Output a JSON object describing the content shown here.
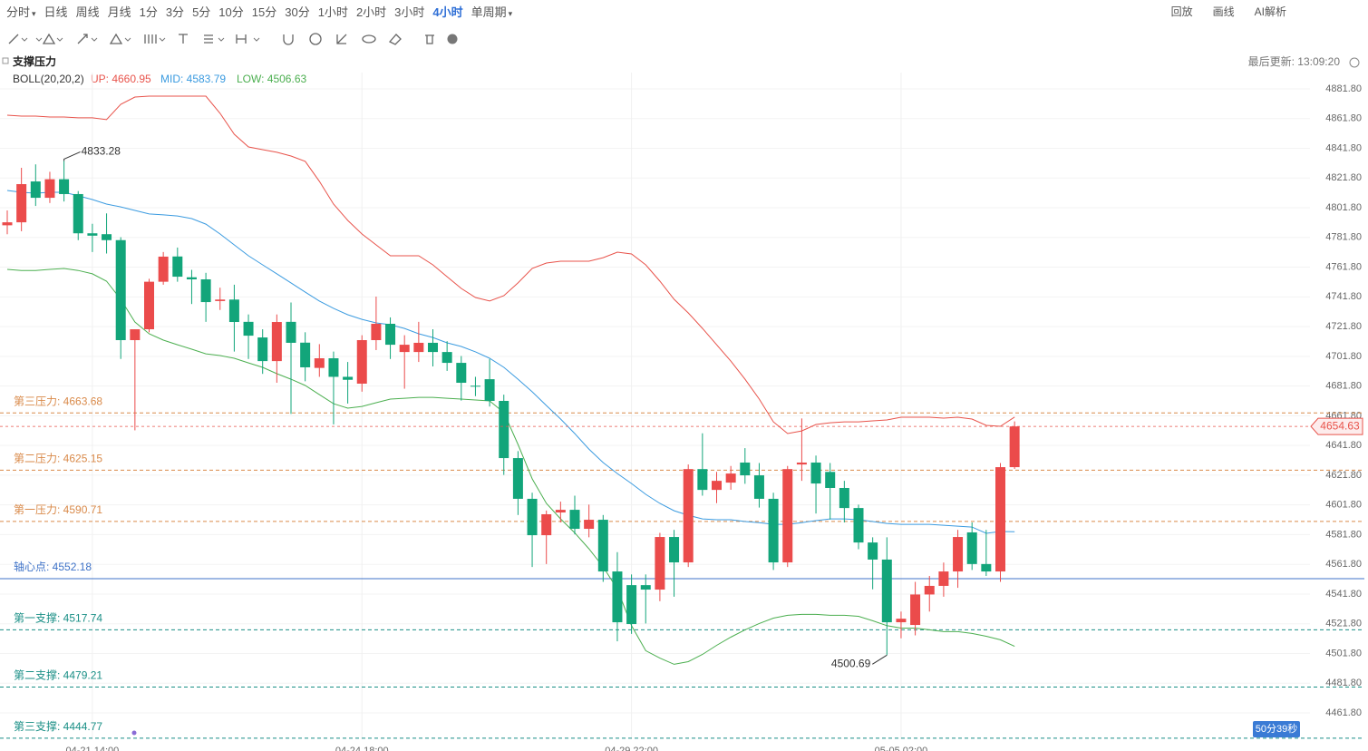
{
  "toolbar": {
    "periods": [
      {
        "label": "分时",
        "dropdown": true
      },
      {
        "label": "日线"
      },
      {
        "label": "周线"
      },
      {
        "label": "月线"
      },
      {
        "label": "1分"
      },
      {
        "label": "3分"
      },
      {
        "label": "5分"
      },
      {
        "label": "10分"
      },
      {
        "label": "15分"
      },
      {
        "label": "30分"
      },
      {
        "label": "1小时"
      },
      {
        "label": "2小时"
      },
      {
        "label": "3小时"
      },
      {
        "label": "4小时",
        "active": true
      },
      {
        "label": "单周期",
        "dropdown": true
      }
    ],
    "tools": [
      "回放",
      "画线",
      "AI解析"
    ]
  },
  "chart_data": {
    "type": "candlestick",
    "title": "支撑压力",
    "indicator": "BOLL(20,20,2)",
    "up_label": "UP: 4660.95",
    "mid_label": "MID: 4583.79",
    "low_label": "LOW: 4506.63",
    "updated": "最后更新: 13:09:20",
    "countdown": "50分39秒",
    "last_price_label": "4654.63",
    "ylim": [
      4461.8,
      4881.8
    ],
    "yticks": [
      {
        "value": 4881.8,
        "label": "4881.80"
      },
      {
        "value": 4861.8,
        "label": "4861.80"
      },
      {
        "value": 4841.8,
        "label": "4841.80"
      },
      {
        "value": 4821.8,
        "label": "4821.80"
      },
      {
        "value": 4801.8,
        "label": "4801.80"
      },
      {
        "value": 4781.8,
        "label": "4781.80"
      },
      {
        "value": 4761.8,
        "label": "4761.80"
      },
      {
        "value": 4741.8,
        "label": "4741.80"
      },
      {
        "value": 4721.8,
        "label": "4721.80"
      },
      {
        "value": 4701.8,
        "label": "4701.80"
      },
      {
        "value": 4681.8,
        "label": "4681.80"
      },
      {
        "value": 4661.8,
        "label": "4661.80"
      },
      {
        "value": 4641.8,
        "label": "4641.80"
      },
      {
        "value": 4621.8,
        "label": "4621.80"
      },
      {
        "value": 4601.8,
        "label": "4601.80"
      },
      {
        "value": 4581.8,
        "label": "4581.80"
      },
      {
        "value": 4561.8,
        "label": "4561.80"
      },
      {
        "value": 4541.8,
        "label": "4541.80"
      },
      {
        "value": 4521.8,
        "label": "4521.80"
      },
      {
        "value": 4501.8,
        "label": "4501.80"
      },
      {
        "value": 4481.8,
        "label": "4481.80"
      },
      {
        "value": 4461.8,
        "label": "4461.80"
      }
    ],
    "grid": true,
    "up_color": "#eb4b4b",
    "down_color": "#12a57a",
    "categories": [
      null,
      null,
      null,
      null,
      null,
      null,
      "04-21 14:00",
      null,
      null,
      null,
      null,
      null,
      null,
      null,
      null,
      null,
      null,
      null,
      null,
      null,
      null,
      null,
      null,
      null,
      null,
      "04-24 18:00",
      null,
      null,
      null,
      null,
      null,
      null,
      null,
      null,
      null,
      null,
      null,
      null,
      null,
      null,
      null,
      null,
      null,
      null,
      "04-29 22:00",
      null,
      null,
      null,
      null,
      null,
      null,
      null,
      null,
      null,
      null,
      null,
      null,
      null,
      null,
      null,
      null,
      null,
      null,
      "05-05 02:00",
      null,
      null,
      null,
      null,
      null,
      null,
      null,
      null
    ],
    "candles": {
      "open": [
        4790,
        4792,
        4819.5,
        4808.5,
        4821,
        4811,
        4784.6,
        4784,
        4780,
        4712.7,
        4720,
        4752,
        4769,
        4755,
        4753.6,
        4739,
        4740,
        4725,
        4714.5,
        4698.6,
        4725,
        4711,
        4694,
        4700.5,
        4688,
        4683.4,
        4712.7,
        4723.7,
        4704.7,
        4704.7,
        4710.9,
        4704.7,
        4697.4,
        4682,
        4686.4,
        4671.8,
        4633.3,
        4605.9,
        4581.4,
        4596.7,
        4598.5,
        4585.7,
        4591.8,
        4557,
        4547.8,
        4547.8,
        4544.8,
        4580.2,
        4563.1,
        4625.9,
        4611.9,
        4616.8,
        4630.3,
        4621.7,
        4605.9,
        4563.1,
        4629,
        4630.3,
        4624,
        4613.2,
        4599.7,
        4576.5,
        4565,
        4522.8,
        4521,
        4541.5,
        4547.3,
        4557,
        4583.3,
        4562,
        4557,
        4627.2
      ],
      "high": [
        4800,
        4828.7,
        4831,
        4826,
        4833.28,
        4813,
        4791,
        4798,
        4782,
        4720,
        4754,
        4772,
        4775,
        4760,
        4758,
        4748,
        4750,
        4730,
        4720,
        4730,
        4738,
        4718,
        4710,
        4705,
        4698,
        4716,
        4742,
        4728,
        4716,
        4725,
        4720,
        4712,
        4702,
        4688,
        4700,
        4676,
        4638,
        4610,
        4598,
        4604,
        4608,
        4602,
        4595,
        4570,
        4555,
        4555,
        4583,
        4585,
        4629,
        4650,
        4624,
        4628,
        4640,
        4630,
        4610,
        4628,
        4660,
        4635,
        4630,
        4618,
        4602,
        4580,
        4580,
        4530,
        4550,
        4554,
        4563,
        4585,
        4590,
        4585,
        4630,
        4658
      ],
      "low": [
        4784,
        4786,
        4803,
        4805,
        4806,
        4780,
        4772,
        4771,
        4700,
        4652,
        4718,
        4750,
        4752,
        4737,
        4725,
        4733,
        4705,
        4700,
        4690,
        4684,
        4663,
        4685,
        4688,
        4656,
        4670,
        4678,
        4706,
        4700,
        4680,
        4698,
        4695,
        4692,
        4672,
        4675,
        4668,
        4622,
        4595,
        4560,
        4562,
        4590,
        4582,
        4580,
        4550,
        4510,
        4515,
        4522,
        4537,
        4540,
        4560,
        4608,
        4603,
        4612,
        4616,
        4600,
        4558,
        4560,
        4618,
        4596,
        4592,
        4590,
        4572,
        4545,
        4500.69,
        4512,
        4514,
        4530,
        4540,
        4546,
        4558,
        4554,
        4550,
        4626
      ],
      "close": [
        4792,
        4817.7,
        4808.5,
        4821,
        4811,
        4784.6,
        4783,
        4780,
        4712.7,
        4720,
        4752,
        4768.9,
        4755.4,
        4753.6,
        4738.3,
        4740,
        4724.9,
        4715.7,
        4698.6,
        4724.9,
        4710.9,
        4694.4,
        4700.5,
        4688,
        4686,
        4712.7,
        4723.7,
        4709.6,
        4709.6,
        4710.9,
        4704.7,
        4697.4,
        4684,
        4681.5,
        4671.8,
        4633.3,
        4605.9,
        4581.4,
        4595.5,
        4598.5,
        4585.7,
        4591.8,
        4557,
        4522.8,
        4521.6,
        4544.8,
        4580.2,
        4563.1,
        4625.9,
        4611.9,
        4618,
        4622.9,
        4621.7,
        4605.9,
        4563.1,
        4625.9,
        4630.3,
        4616.2,
        4613.2,
        4599.7,
        4576.5,
        4565,
        4522.8,
        4525.2,
        4541.5,
        4547.3,
        4557,
        4580.2,
        4562,
        4557,
        4627.2,
        4654.63
      ]
    },
    "series": [
      {
        "name": "UP",
        "color": "#e8534b",
        "values": [
          4864.1,
          4863.5,
          4863.5,
          4862.9,
          4862.9,
          4862.3,
          4862.3,
          4861.1,
          4871.4,
          4876.3,
          4876.9,
          4876.9,
          4876.9,
          4876.9,
          4876.9,
          4865.3,
          4851.3,
          4842.7,
          4840.9,
          4839.1,
          4836.6,
          4833.0,
          4819.6,
          4804.3,
          4793.3,
          4784.1,
          4776.8,
          4769.5,
          4769.5,
          4769.5,
          4763.4,
          4755.4,
          4747.5,
          4741.4,
          4739.0,
          4742.6,
          4751.2,
          4761.0,
          4764.6,
          4765.8,
          4765.8,
          4765.8,
          4768.2,
          4771.9,
          4770.7,
          4763.4,
          4752.4,
          4740.2,
          4731.0,
          4720.6,
          4709.6,
          4698.6,
          4686.4,
          4673.0,
          4657.7,
          4649.8,
          4651.6,
          4655.9,
          4657.1,
          4657.7,
          4657.7,
          4658.4,
          4659.0,
          4660.8,
          4660.8,
          4660.8,
          4660.2,
          4660.8,
          4659.6,
          4655.3,
          4654.7,
          4660.95
        ]
      },
      {
        "name": "MID",
        "color": "#3b9be0",
        "values": [
          4813.4,
          4812.2,
          4811.6,
          4812.2,
          4812.2,
          4809.8,
          4807.3,
          4804.3,
          4802.4,
          4800.0,
          4797.6,
          4797.0,
          4796.3,
          4794.5,
          4790.8,
          4784.1,
          4776.8,
          4769.5,
          4763.4,
          4757.3,
          4751.2,
          4745.0,
          4739.0,
          4734.1,
          4729.8,
          4726.7,
          4724.3,
          4723.1,
          4720.6,
          4717.0,
          4714.5,
          4710.9,
          4708.4,
          4704.8,
          4700.5,
          4694.4,
          4686.4,
          4677.9,
          4668.7,
          4659.6,
          4649.8,
          4639.4,
          4630.3,
          4622.9,
          4616.2,
          4608.9,
          4602.8,
          4597.9,
          4594.8,
          4592.4,
          4591.8,
          4591.8,
          4590.6,
          4589.9,
          4588.7,
          4588.7,
          4589.9,
          4591.2,
          4592.4,
          4592.4,
          4591.8,
          4590.6,
          4589.3,
          4588.7,
          4588.7,
          4588.7,
          4588.1,
          4587.5,
          4586.9,
          4582.7,
          4583.9,
          4583.79
        ]
      },
      {
        "name": "LOW",
        "color": "#4caf50",
        "values": [
          4760.3,
          4759.6,
          4759.6,
          4760.3,
          4760.9,
          4759.6,
          4757.3,
          4752.4,
          4740.2,
          4724.9,
          4717.0,
          4712.7,
          4709.6,
          4706.6,
          4703.5,
          4702.3,
          4700.5,
          4697.4,
          4694.4,
          4690.1,
          4686.4,
          4682.2,
          4676.0,
          4669.9,
          4666.9,
          4668.1,
          4670.6,
          4673.0,
          4673.6,
          4674.2,
          4674.2,
          4673.6,
          4673.0,
          4672.4,
          4671.8,
          4663.9,
          4642.5,
          4619.3,
          4602.8,
          4592.4,
          4583.0,
          4572.3,
          4560.1,
          4545.1,
          4520.5,
          4503.7,
          4498.7,
          4494.5,
          4496.3,
          4501.2,
          4507.3,
          4512.8,
          4517.7,
          4522.0,
          4525.6,
          4527.5,
          4528.1,
          4528.1,
          4527.5,
          4527.5,
          4526.8,
          4523.8,
          4520.5,
          4518.9,
          4518.9,
          4517.7,
          4516.5,
          4516.5,
          4515.3,
          4513.4,
          4511.0,
          4506.63
        ]
      }
    ],
    "levels": [
      {
        "label": "第三压力: 4663.68",
        "value": 4663.68,
        "color": "#d98a4a",
        "dash": true
      },
      {
        "label": "第二压力: 4625.15",
        "value": 4625.15,
        "color": "#d98a4a",
        "dash": true
      },
      {
        "label": "第一压力: 4590.71",
        "value": 4590.71,
        "color": "#d98a4a",
        "dash": true
      },
      {
        "label": "轴心点: 4552.18",
        "value": 4552.18,
        "color": "#3f73c8",
        "dash": false
      },
      {
        "label": "第一支撑: 4517.74",
        "value": 4517.74,
        "color": "#1a8f86",
        "dash": true
      },
      {
        "label": "第二支撑: 4479.21",
        "value": 4479.21,
        "color": "#1a8f86",
        "dash": true
      },
      {
        "label": "第三支撑: 4444.77",
        "value": 4444.77,
        "color": "#1a8f86",
        "dash": true
      }
    ],
    "annotations": [
      {
        "label": "4833.28",
        "at": "max"
      },
      {
        "label": "4500.69",
        "at": "min"
      }
    ]
  }
}
